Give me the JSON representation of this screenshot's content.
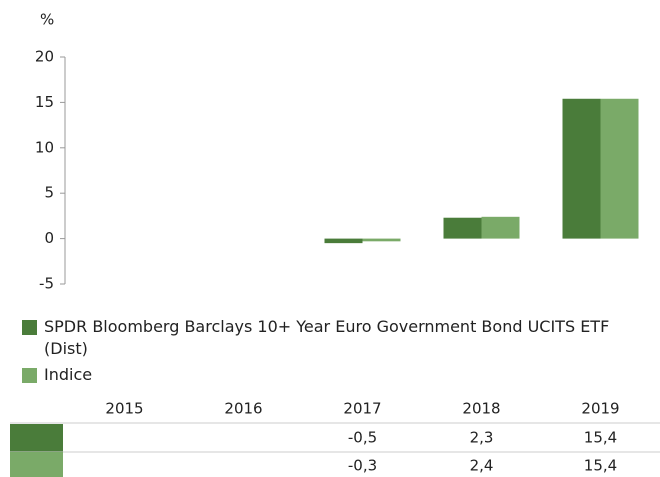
{
  "chart_data": {
    "type": "bar",
    "y_label": "%",
    "categories": [
      "2015",
      "2016",
      "2017",
      "2018",
      "2019"
    ],
    "series": [
      {
        "name": "SPDR Bloomberg Barclays 10+ Year Euro Government Bond UCITS ETF (Dist)",
        "color": "#4a7c3a",
        "values": [
          null,
          null,
          -0.5,
          2.3,
          15.4
        ],
        "value_labels": [
          null,
          null,
          "-0,5",
          "2,3",
          "15,4"
        ]
      },
      {
        "name": "Indice",
        "color": "#7aaa68",
        "values": [
          null,
          null,
          -0.3,
          2.4,
          15.4
        ],
        "value_labels": [
          null,
          null,
          "-0,3",
          "2,4",
          "15,4"
        ]
      }
    ],
    "ylim": [
      -5,
      20
    ],
    "yticks": [
      -5,
      0,
      5,
      10,
      15,
      20
    ],
    "grid": false,
    "legend": "bottom"
  }
}
